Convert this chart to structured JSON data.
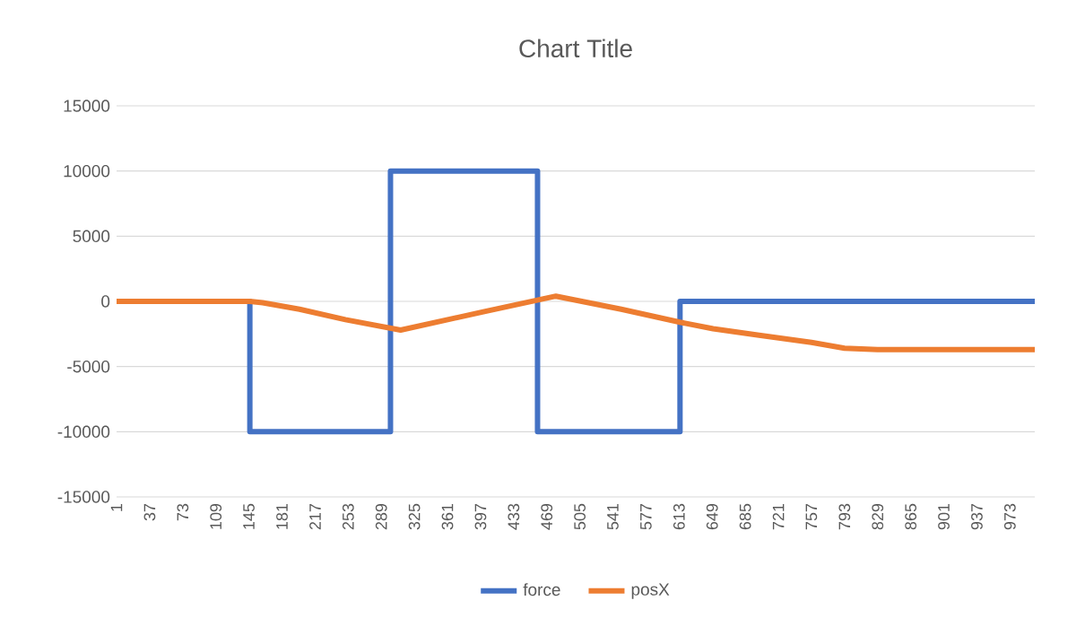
{
  "chart_data": {
    "type": "line",
    "title": "Chart Title",
    "xlim": [
      1,
      1000
    ],
    "xticks": [
      1,
      37,
      73,
      109,
      145,
      181,
      217,
      253,
      289,
      325,
      361,
      397,
      433,
      469,
      505,
      541,
      577,
      613,
      649,
      685,
      721,
      757,
      793,
      829,
      865,
      901,
      937,
      973
    ],
    "ylim": [
      -15000,
      15000
    ],
    "yticks": [
      -15000,
      -10000,
      -5000,
      0,
      5000,
      10000,
      15000
    ],
    "grid": "y",
    "legend": "bottom",
    "line_style": "solid",
    "series": [
      {
        "name": "force",
        "color": "#4472c4",
        "x": [
          1,
          146,
          146,
          299,
          299,
          459,
          459,
          614,
          614,
          1000
        ],
        "values": [
          0,
          0,
          -10000,
          -10000,
          10000,
          10000,
          -10000,
          -10000,
          0,
          0
        ]
      },
      {
        "name": "posX",
        "color": "#ed7d31",
        "x": [
          1,
          146,
          160,
          200,
          250,
          310,
          400,
          479,
          550,
          614,
          650,
          700,
          757,
          793,
          829,
          1000
        ],
        "values": [
          0,
          0,
          -100,
          -600,
          -1400,
          -2200,
          -800,
          400,
          -600,
          -1600,
          -2100,
          -2600,
          -3150,
          -3600,
          -3700,
          -3700
        ]
      }
    ]
  }
}
